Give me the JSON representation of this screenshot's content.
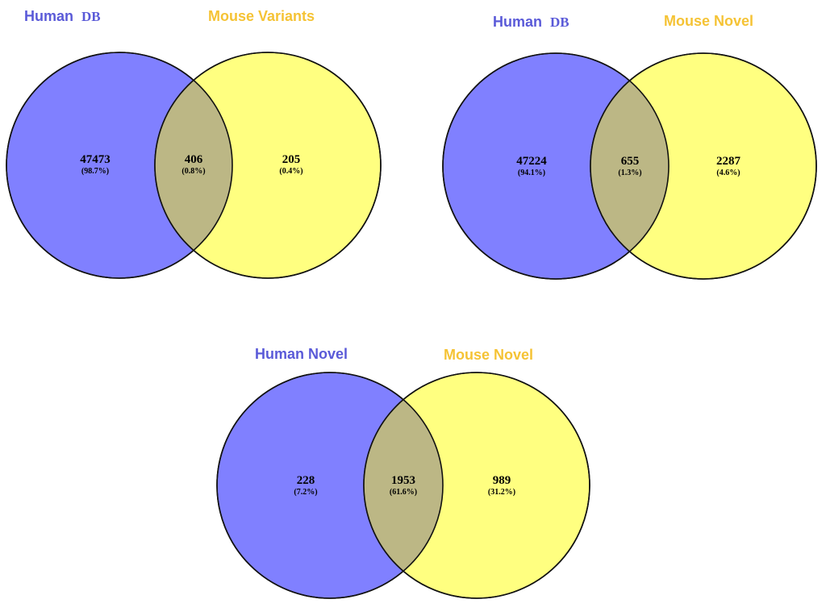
{
  "colors": {
    "left_fill": "#8080ff",
    "right_fill": "#ffff80",
    "overlap_fill": "#bcb785",
    "left_label": "#5a5ad8",
    "right_label": "#f5c335"
  },
  "diagrams": [
    {
      "left_label": "Human",
      "left_label_suffix": "DB",
      "right_label": "Mouse Variants",
      "left_only": "47473",
      "left_only_pct": "(98.7%)",
      "overlap": "406",
      "overlap_pct": "(0.8%)",
      "right_only": "205",
      "right_only_pct": "(0.4%)"
    },
    {
      "left_label": "Human",
      "left_label_suffix": "DB",
      "right_label": "Mouse Novel",
      "left_only": "47224",
      "left_only_pct": "(94.1%)",
      "overlap": "655",
      "overlap_pct": "(1.3%)",
      "right_only": "2287",
      "right_only_pct": "(4.6%)"
    },
    {
      "left_label": "Human Novel",
      "left_label_suffix": "",
      "right_label": "Mouse Novel",
      "left_only": "228",
      "left_only_pct": "(7.2%)",
      "overlap": "1953",
      "overlap_pct": "(61.6%)",
      "right_only": "989",
      "right_only_pct": "(31.2%)"
    }
  ]
}
